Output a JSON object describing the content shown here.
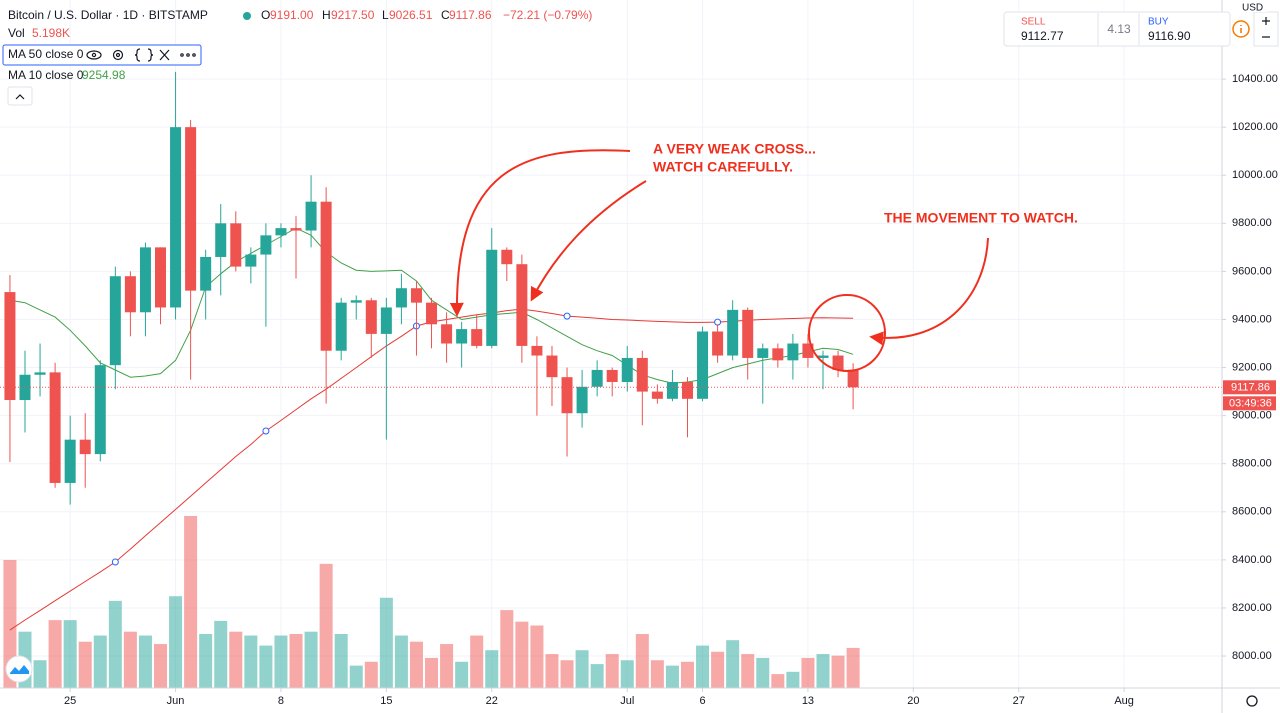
{
  "chart_data": {
    "type": "candlestick",
    "title": "Bitcoin / U.S. Dollar · 1D · BITSTAMP",
    "legend_prefixes": [
      "O",
      "H",
      "L",
      "C"
    ],
    "legend_values": [
      "9191.00",
      "9217.50",
      "9026.51",
      "9117.86"
    ],
    "change": "−72.21 (−0.79%)",
    "countdown": "03:49:36",
    "currency": "USD",
    "grid": true,
    "up_color": "#26a69a",
    "down_color": "#ef5350",
    "xlim": [
      -0.66,
      80.5
    ],
    "xticks": [
      {
        "value": 4,
        "label": "25"
      },
      {
        "value": 11,
        "label": "Jun"
      },
      {
        "value": 18,
        "label": "8"
      },
      {
        "value": 25,
        "label": "15"
      },
      {
        "value": 32,
        "label": "22"
      },
      {
        "value": 41,
        "label": "Jul"
      },
      {
        "value": 46,
        "label": "6"
      },
      {
        "value": 53,
        "label": "13"
      },
      {
        "value": 60,
        "label": "20"
      },
      {
        "value": 67,
        "label": "27"
      },
      {
        "value": 74,
        "label": "Aug"
      }
    ],
    "ylim": [
      7867,
      10729
    ],
    "yticks": [
      {
        "value": 8000,
        "label": "8000.00"
      },
      {
        "value": 8200,
        "label": "8200.00"
      },
      {
        "value": 8400,
        "label": "8400.00"
      },
      {
        "value": 8600,
        "label": "8600.00"
      },
      {
        "value": 8800,
        "label": "8800.00"
      },
      {
        "value": 9000,
        "label": "9000.00"
      },
      {
        "value": 9200,
        "label": "9200.00"
      },
      {
        "value": 9400,
        "label": "9400.00"
      },
      {
        "value": 9600,
        "label": "9600.00"
      },
      {
        "value": 9800,
        "label": "9800.00"
      },
      {
        "value": 10000,
        "label": "10000.00"
      },
      {
        "value": 10200,
        "label": "10200.00"
      },
      {
        "value": 10400,
        "label": "10400.00"
      }
    ],
    "open": [
      9514,
      9065,
      9170,
      9180,
      8720,
      8900,
      8840,
      9210,
      9580,
      9430,
      9700,
      9450,
      10200,
      9520,
      9660,
      9800,
      9620,
      9670,
      9750,
      9780,
      9770,
      9890,
      9270,
      9470,
      9480,
      9340,
      9450,
      9530,
      9470,
      9380,
      9300,
      9360,
      9290,
      9690,
      9630,
      9290,
      9250,
      9160,
      9010,
      9120,
      9190,
      9140,
      9240,
      9100,
      9070,
      9140,
      9070,
      9350,
      9250,
      9440,
      9240,
      9280,
      9230,
      9300,
      9240,
      9250,
      9191
    ],
    "high": [
      9585,
      9270,
      9300,
      9220,
      9000,
      9010,
      9230,
      9620,
      9600,
      9720,
      9700,
      10430,
      10230,
      9690,
      9880,
      9850,
      9700,
      9800,
      9800,
      9830,
      10000,
      9950,
      9490,
      9500,
      9490,
      9490,
      9590,
      9560,
      9490,
      9430,
      9390,
      9420,
      9780,
      9700,
      9670,
      9330,
      9290,
      9200,
      9190,
      9230,
      9200,
      9290,
      9270,
      9130,
      9190,
      9160,
      9370,
      9380,
      9480,
      9450,
      9300,
      9300,
      9340,
      9340,
      9270,
      9270,
      9217.5
    ],
    "low": [
      8807,
      8930,
      9080,
      8700,
      8630,
      8700,
      8810,
      9110,
      9330,
      9330,
      9380,
      9400,
      9150,
      9400,
      9500,
      9600,
      9550,
      9370,
      9700,
      9570,
      9700,
      9050,
      9230,
      9400,
      9240,
      8900,
      9380,
      9250,
      9280,
      9220,
      9200,
      9280,
      9280,
      9560,
      9220,
      9000,
      9040,
      8830,
      8950,
      9080,
      9080,
      9100,
      8960,
      9050,
      9060,
      8910,
      9060,
      9220,
      9230,
      9150,
      9050,
      9200,
      9150,
      9200,
      9110,
      9160,
      9026.51
    ],
    "close": [
      9065,
      9170,
      9180,
      8720,
      8900,
      8840,
      9210,
      9580,
      9430,
      9700,
      9450,
      10200,
      9520,
      9660,
      9800,
      9620,
      9670,
      9750,
      9780,
      9770,
      9890,
      9270,
      9470,
      9480,
      9340,
      9450,
      9530,
      9470,
      9380,
      9300,
      9360,
      9290,
      9690,
      9630,
      9290,
      9250,
      9160,
      9010,
      9120,
      9190,
      9140,
      9240,
      9100,
      9070,
      9140,
      9070,
      9350,
      9250,
      9440,
      9240,
      9280,
      9230,
      9300,
      9240,
      9250,
      9190,
      9117.86
    ],
    "volume": {
      "name": "Vol",
      "value_label": "5.198K",
      "values": [
        16.6,
        7.3,
        3.6,
        8.8,
        8.8,
        6.0,
        6.8,
        11.3,
        7.3,
        6.8,
        5.7,
        11.9,
        22.3,
        7.0,
        8.7,
        7.3,
        6.8,
        5.5,
        6.8,
        7.0,
        7.3,
        16.1,
        7.0,
        2.9,
        3.4,
        11.7,
        6.8,
        6.0,
        3.9,
        5.7,
        3.4,
        6.8,
        4.9,
        10.1,
        8.6,
        8.1,
        4.4,
        3.6,
        4.9,
        3.1,
        4.4,
        3.6,
        7.0,
        3.6,
        2.9,
        3.4,
        5.5,
        4.7,
        6.2,
        4.4,
        3.9,
        1.8,
        2.1,
        3.9,
        4.4,
        4.2,
        5.198
      ]
    },
    "series": [
      {
        "name": "MA 50 close 0",
        "color": "#e53935",
        "values": [
          8108,
          8150,
          8190,
          8230,
          8270,
          8310,
          8350,
          8391,
          8445,
          8500,
          8555,
          8610,
          8665,
          8720,
          8775,
          8830,
          8880,
          8936,
          8980,
          9025,
          9070,
          9110,
          9155,
          9200,
          9245,
          9290,
          9330,
          9373,
          9390,
          9400,
          9410,
          9420,
          9427,
          9437,
          9443,
          9435,
          9425,
          9414,
          9410,
          9405,
          9400,
          9398,
          9395,
          9392,
          9390,
          9388,
          9388,
          9389,
          9393,
          9397,
          9400,
          9402,
          9404,
          9406,
          9407,
          9406,
          9405
        ]
      },
      {
        "name": "MA 10 close 0",
        "color": "#43a047",
        "values": [
          9480,
          9470,
          9440,
          9410,
          9355,
          9290,
          9220,
          9190,
          9160,
          9165,
          9175,
          9230,
          9355,
          9535,
          9590,
          9640,
          9675,
          9710,
          9745,
          9780,
          9750,
          9680,
          9635,
          9605,
          9600,
          9602,
          9605,
          9560,
          9480,
          9440,
          9400,
          9410,
          9420,
          9425,
          9430,
          9400,
          9365,
          9330,
          9295,
          9270,
          9250,
          9210,
          9170,
          9150,
          9135,
          9140,
          9150,
          9175,
          9200,
          9215,
          9230,
          9240,
          9250,
          9265,
          9280,
          9275,
          9254.98
        ]
      }
    ],
    "annotations": [
      "A VERY WEAK CROSS...",
      "WATCH CAREFULLY.",
      "THE MOVEMENT TO WATCH."
    ],
    "trade": {
      "sell_label": "SELL",
      "sell": "9112.77",
      "spread": "4.13",
      "buy_label": "BUY",
      "buy": "9116.90"
    }
  }
}
